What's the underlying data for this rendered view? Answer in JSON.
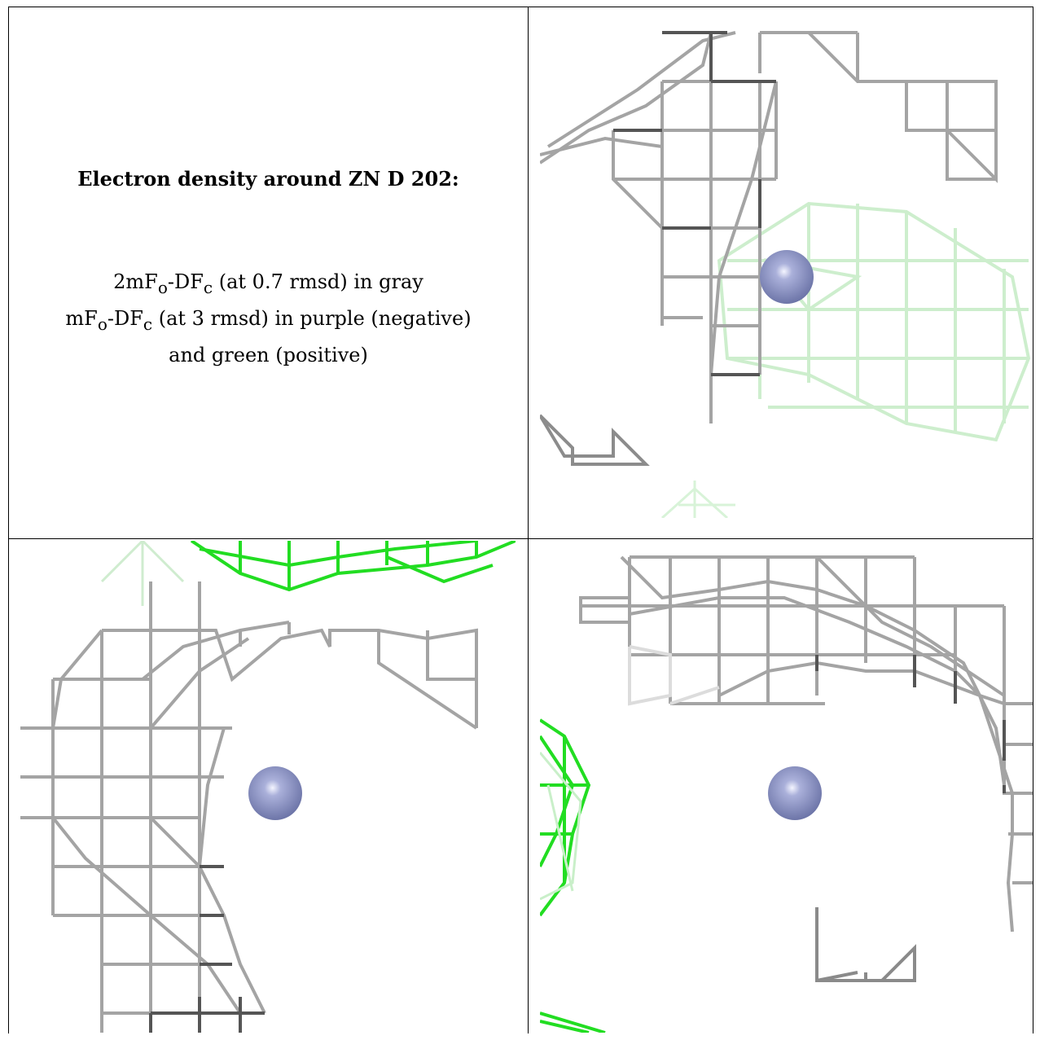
{
  "caption": {
    "title": "Electron density around ZN D 202:",
    "lines": [
      {
        "base": "2mF",
        "sub1": "o",
        "mid": "-DF",
        "sub2": "c",
        "rest": " (at 0.7 rmsd) in gray"
      },
      {
        "base": "mF",
        "sub1": "o",
        "mid": "-DF",
        "sub2": "c",
        "rest": " (at 3 rmsd) in purple (negative)"
      },
      {
        "text": "and green (positive)"
      }
    ]
  },
  "colors": {
    "mesh_gray": "#9a9a9a",
    "mesh_dark": "#555555",
    "mesh_green": "#22dd22",
    "mesh_green_faint": "#bff0bf",
    "atom": "#8b93c4",
    "atom_highlight": "#eef0ff"
  },
  "panels": [
    {
      "name": "view-top-right",
      "atom": "ZN"
    },
    {
      "name": "view-bottom-left",
      "atom": "ZN"
    },
    {
      "name": "view-bottom-right",
      "atom": "ZN"
    }
  ]
}
